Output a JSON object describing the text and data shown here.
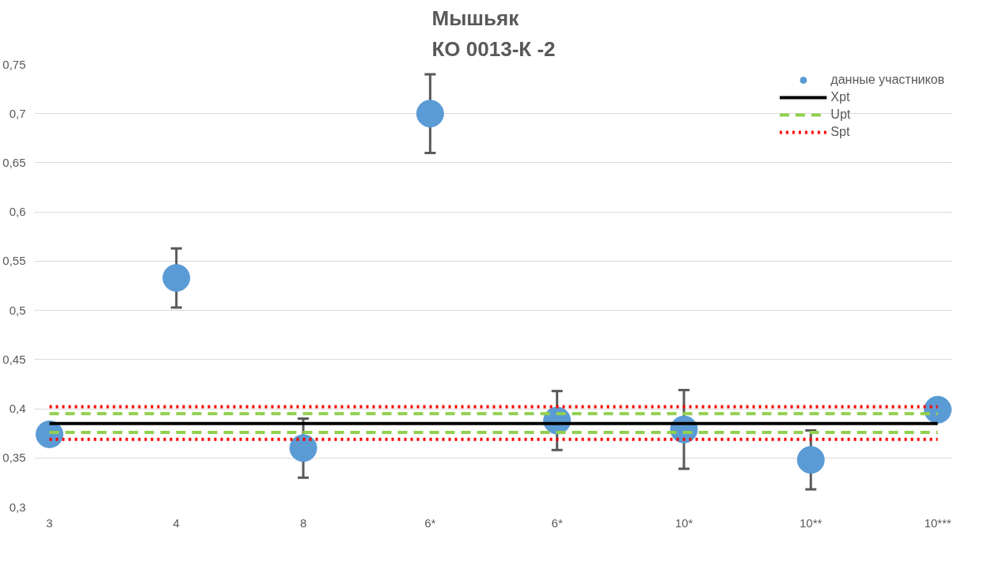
{
  "chart_data": {
    "type": "scatter",
    "title": "Мышьяк\nКО 0013-К -2",
    "categories": [
      "3",
      "4",
      "8",
      "6*",
      "6*",
      "10*",
      "10**",
      "10***"
    ],
    "series": [
      {
        "name": "данные участников",
        "type": "scatter",
        "color": "#5b9bd5",
        "marker": "circle",
        "values": [
          0.374,
          0.533,
          0.36,
          0.7,
          0.388,
          0.379,
          0.348,
          0.399
        ],
        "errors": [
          null,
          0.03,
          0.03,
          0.04,
          0.03,
          0.04,
          0.03,
          null
        ]
      },
      {
        "name": "Xpt",
        "type": "line",
        "color": "#000000",
        "line_style": "solid",
        "values": [
          0.385,
          0.385,
          0.385,
          0.385,
          0.385,
          0.385,
          0.385,
          0.385
        ]
      },
      {
        "name": "Upt",
        "type": "line",
        "color": "#92d050",
        "line_style": "dashed",
        "values": [
          0.395,
          0.395,
          0.395,
          0.395,
          0.395,
          0.395,
          0.395,
          0.395
        ]
      },
      {
        "type": "line",
        "color": "#92d050",
        "line_style": "dashed",
        "values": [
          0.376,
          0.376,
          0.376,
          0.376,
          0.376,
          0.376,
          0.376,
          0.376
        ]
      },
      {
        "name": "Spt",
        "type": "line",
        "color": "#ff0000",
        "line_style": "dotted",
        "values": [
          0.402,
          0.402,
          0.402,
          0.402,
          0.402,
          0.402,
          0.402,
          0.402
        ]
      },
      {
        "type": "line",
        "color": "#ff0000",
        "line_style": "dotted",
        "values": [
          0.369,
          0.369,
          0.369,
          0.369,
          0.369,
          0.369,
          0.369,
          0.369
        ]
      }
    ],
    "ylim": [
      0.3,
      0.75
    ],
    "yticks": [
      {
        "value": 0.3,
        "label": "0,3"
      },
      {
        "value": 0.35,
        "label": "0,35"
      },
      {
        "value": 0.4,
        "label": "0,4"
      },
      {
        "value": 0.45,
        "label": "0,45"
      },
      {
        "value": 0.5,
        "label": "0,5"
      },
      {
        "value": 0.55,
        "label": "0,55"
      },
      {
        "value": 0.6,
        "label": "0,6"
      },
      {
        "value": 0.65,
        "label": "0,65"
      },
      {
        "value": 0.7,
        "label": "0,7"
      },
      {
        "value": 0.75,
        "label": "0,75"
      }
    ],
    "grid": "y",
    "legend": "top right"
  }
}
